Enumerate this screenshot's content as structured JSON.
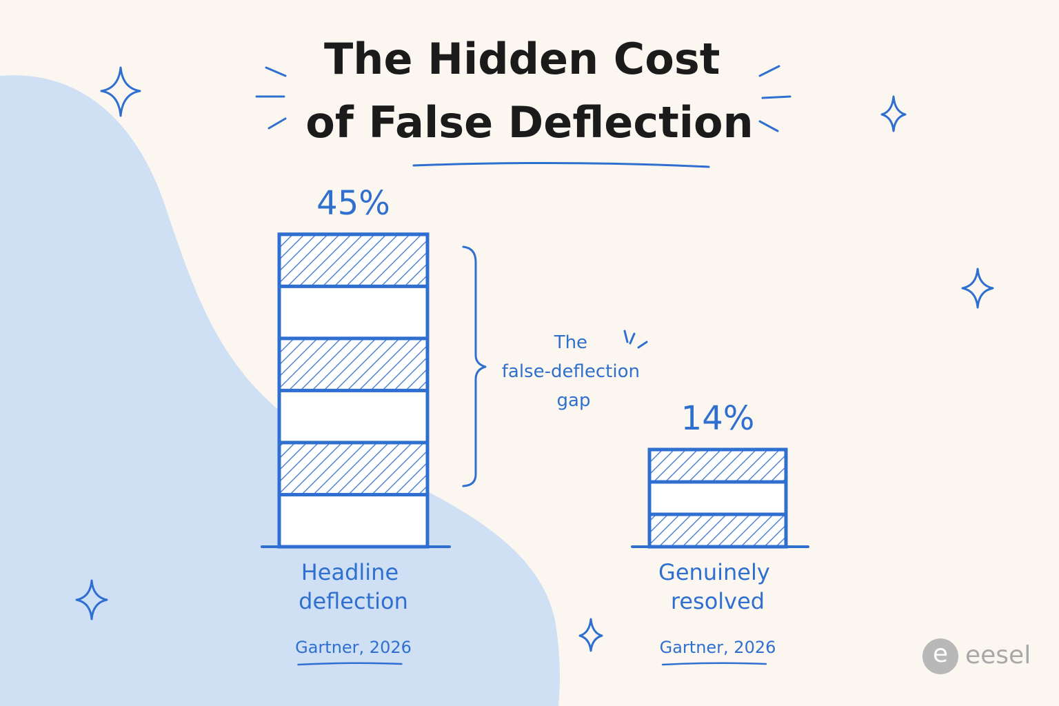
{
  "chart_data": {
    "type": "bar",
    "title": "The Hidden Cost of False Deflection",
    "categories": [
      "Headline deflection",
      "Genuinely resolved"
    ],
    "values": [
      45,
      14
    ],
    "value_labels": [
      "45%",
      "14%"
    ],
    "sources": [
      "Gartner, 2026",
      "Gartner, 2026"
    ],
    "annotation": "The false-deflection gap",
    "color": "#2f6fcf"
  },
  "logo": "eesel"
}
